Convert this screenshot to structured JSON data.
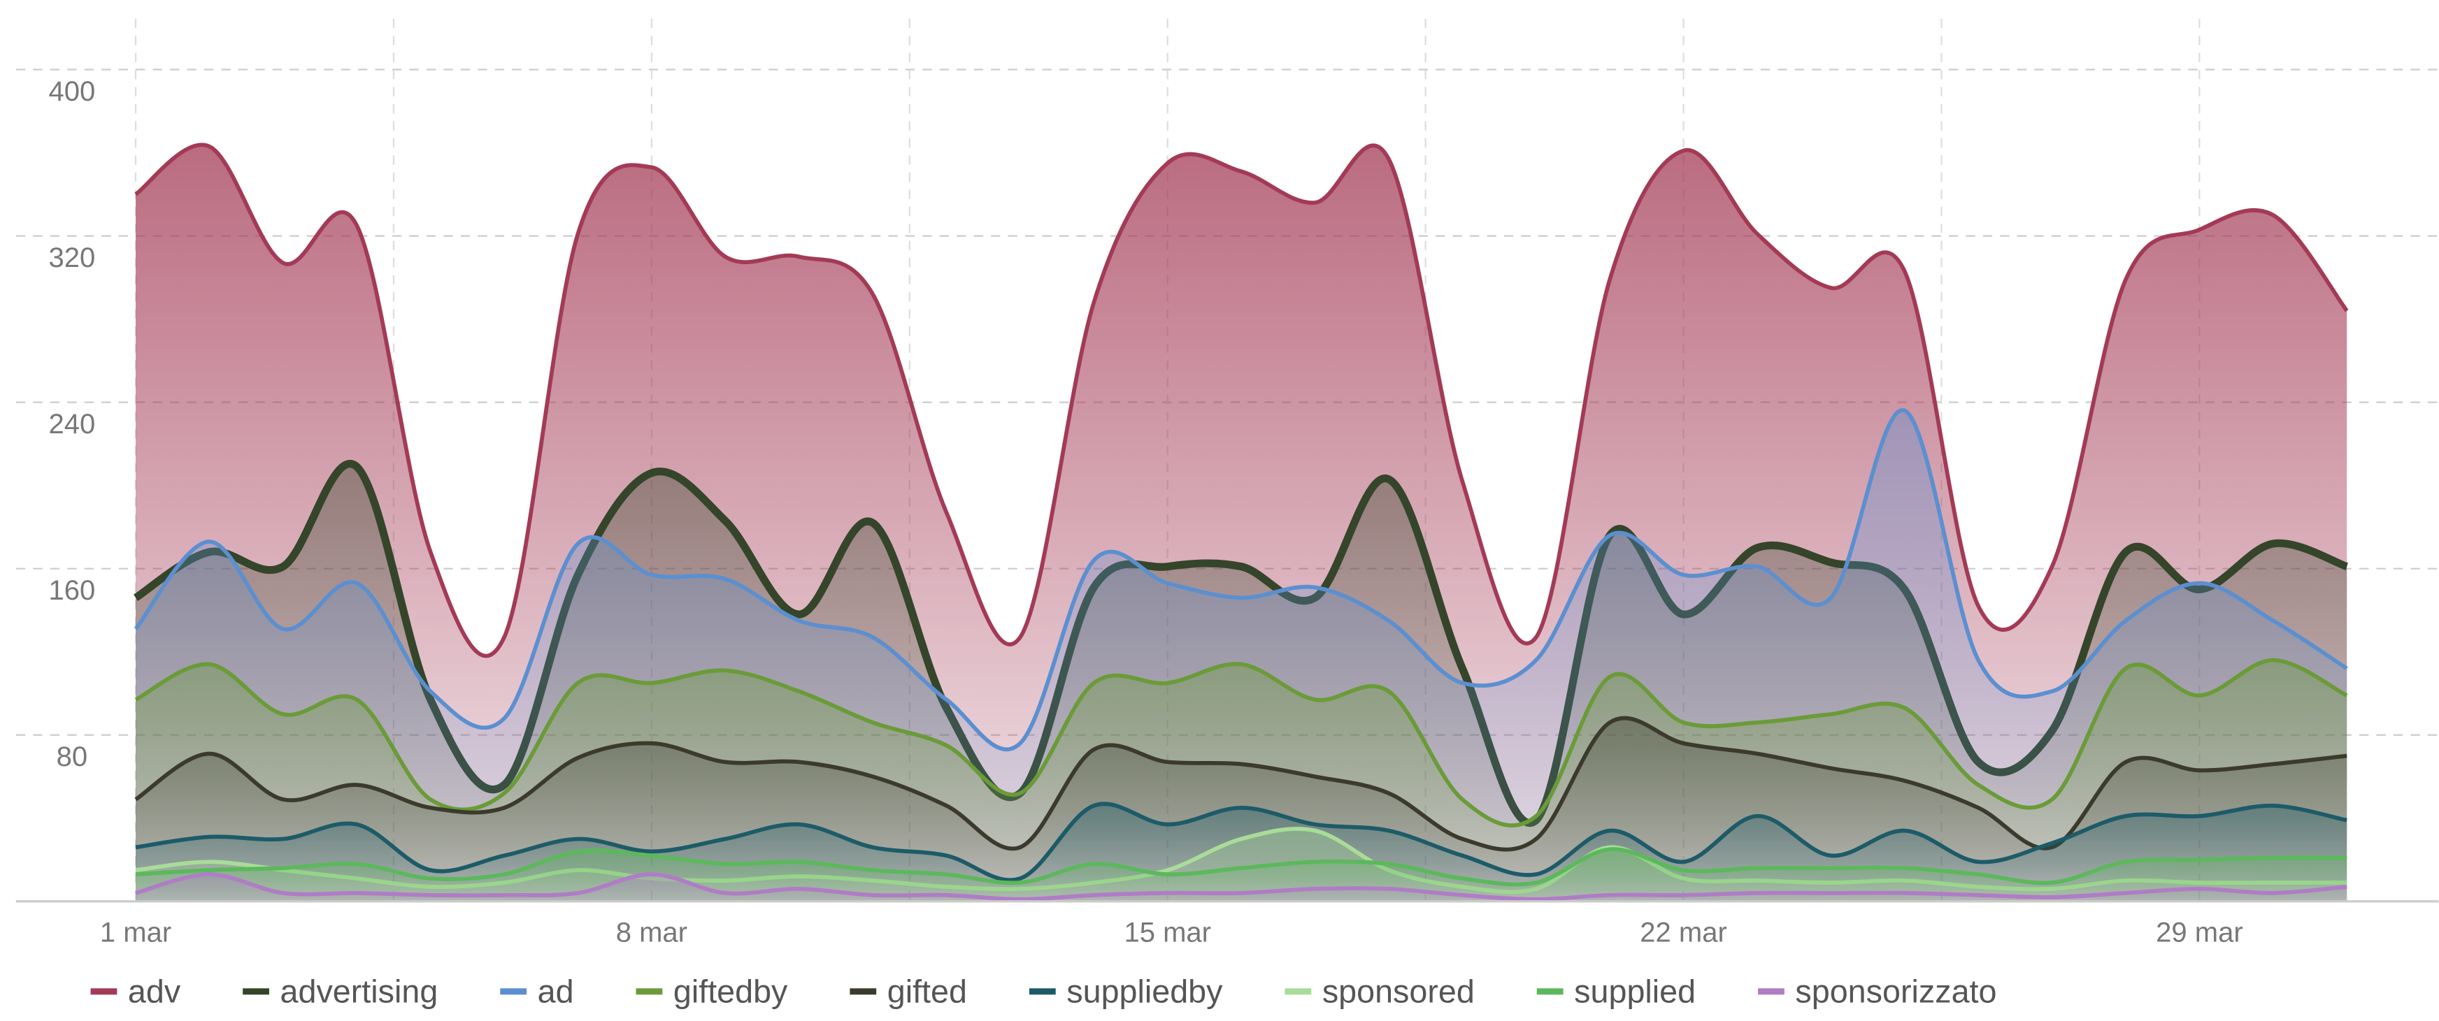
{
  "chart_data": {
    "type": "area",
    "categories": [
      "1 mar",
      null,
      null,
      null,
      null,
      null,
      null,
      "8 mar",
      null,
      null,
      null,
      null,
      null,
      null,
      "15 mar",
      null,
      null,
      null,
      null,
      null,
      null,
      "22 mar",
      null,
      null,
      null,
      null,
      null,
      null,
      "29 mar",
      null,
      null
    ],
    "ylim": [
      0,
      420
    ],
    "yticks": [
      80,
      160,
      240,
      320,
      400
    ],
    "grid": true,
    "legend": "bottom",
    "series": [
      {
        "name": "adv",
        "color": "#a33a56",
        "values": [
          340,
          363,
          307,
          325,
          168,
          127,
          321,
          353,
          310,
          310,
          292,
          187,
          127,
          288,
          355,
          351,
          336,
          357,
          202,
          127,
          299,
          361,
          321,
          295,
          303,
          142,
          161,
          299,
          323,
          330,
          284
        ]
      },
      {
        "name": "advertising",
        "color": "#34452a",
        "values": [
          146,
          168,
          161,
          209,
          97,
          56,
          157,
          206,
          183,
          138,
          182,
          93,
          52,
          151,
          161,
          161,
          146,
          203,
          112,
          39,
          176,
          138,
          170,
          163,
          150,
          67,
          82,
          168,
          150,
          172,
          161
        ]
      },
      {
        "name": "ad",
        "color": "#5b8fd0",
        "values": [
          131,
          173,
          131,
          153,
          101,
          88,
          172,
          157,
          155,
          135,
          127,
          97,
          76,
          164,
          153,
          146,
          151,
          135,
          105,
          116,
          176,
          157,
          161,
          146,
          236,
          116,
          101,
          135,
          153,
          135,
          112
        ]
      },
      {
        "name": "giftedby",
        "color": "#6a9b38",
        "values": [
          97,
          114,
          90,
          97,
          49,
          52,
          105,
          105,
          111,
          101,
          86,
          75,
          52,
          105,
          105,
          114,
          97,
          101,
          49,
          41,
          108,
          86,
          86,
          90,
          93,
          56,
          49,
          112,
          99,
          116,
          99
        ]
      },
      {
        "name": "gifted",
        "color": "#3b3a2c",
        "values": [
          49,
          71,
          49,
          56,
          45,
          45,
          69,
          76,
          67,
          67,
          60,
          46,
          26,
          73,
          67,
          66,
          60,
          52,
          30,
          30,
          86,
          76,
          71,
          64,
          58,
          45,
          26,
          67,
          63,
          66,
          70
        ]
      },
      {
        "name": "suppliedby",
        "color": "#1d5b68",
        "values": [
          26,
          31,
          30,
          37,
          15,
          22,
          30,
          24,
          30,
          37,
          26,
          22,
          11,
          46,
          37,
          45,
          37,
          34,
          22,
          13,
          34,
          19,
          41,
          22,
          34,
          19,
          28,
          41,
          41,
          46,
          39
        ]
      },
      {
        "name": "sponsored",
        "color": "#a9dc98",
        "values": [
          15,
          19,
          15,
          11,
          7,
          9,
          15,
          11,
          10,
          12,
          10,
          7,
          6,
          9,
          15,
          30,
          34,
          15,
          7,
          6,
          26,
          11,
          10,
          9,
          10,
          7,
          6,
          10,
          9,
          9,
          9
        ]
      },
      {
        "name": "supplied",
        "color": "#5cb85c",
        "values": [
          13,
          15,
          16,
          18,
          11,
          13,
          24,
          22,
          18,
          19,
          15,
          13,
          9,
          18,
          13,
          16,
          19,
          18,
          11,
          9,
          25,
          15,
          16,
          16,
          16,
          13,
          9,
          19,
          20,
          21,
          21
        ]
      },
      {
        "name": "sponsorizzato",
        "color": "#b07cc6",
        "values": [
          4,
          13,
          4,
          4,
          3,
          3,
          4,
          13,
          4,
          6,
          3,
          3,
          1,
          3,
          4,
          4,
          6,
          6,
          3,
          1,
          3,
          3,
          4,
          4,
          4,
          3,
          2,
          4,
          6,
          4,
          7
        ]
      }
    ]
  }
}
